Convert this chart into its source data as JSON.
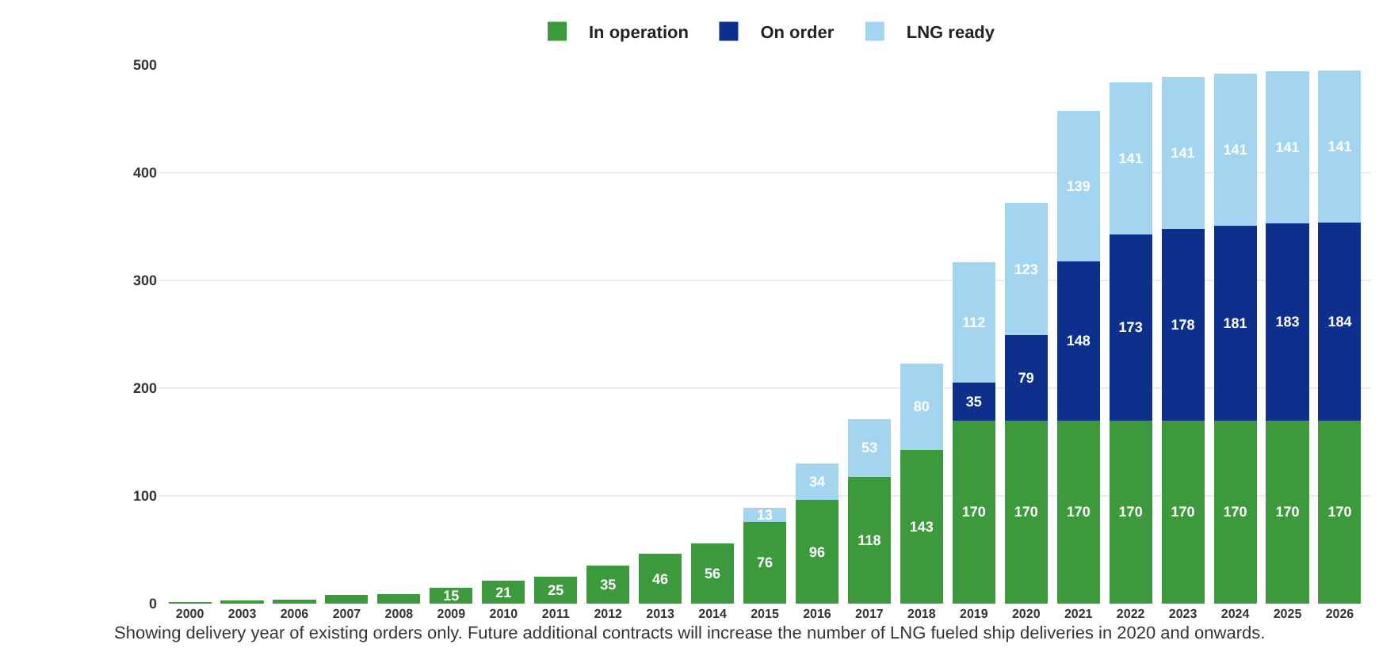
{
  "chart_data": {
    "type": "bar",
    "stacked": true,
    "categories": [
      "2000",
      "2003",
      "2006",
      "2007",
      "2008",
      "2009",
      "2010",
      "2011",
      "2012",
      "2013",
      "2014",
      "2015",
      "2016",
      "2017",
      "2018",
      "2019",
      "2020",
      "2021",
      "2022",
      "2023",
      "2024",
      "2025",
      "2026"
    ],
    "series": [
      {
        "name": "In operation",
        "color": "#3c9a3c",
        "values": [
          1,
          3,
          4,
          8,
          9,
          15,
          21,
          25,
          35,
          46,
          56,
          76,
          96,
          118,
          143,
          170,
          170,
          170,
          170,
          170,
          170,
          170,
          170
        ],
        "value_labels": [
          null,
          null,
          null,
          null,
          null,
          "15",
          "21",
          "25",
          "35",
          "46",
          "56",
          "76",
          "96",
          "118",
          "143",
          "170",
          "170",
          "170",
          "170",
          "170",
          "170",
          "170",
          "170"
        ]
      },
      {
        "name": "On order",
        "color": "#0e2f8c",
        "values": [
          null,
          null,
          null,
          null,
          null,
          null,
          null,
          null,
          null,
          null,
          null,
          null,
          null,
          null,
          null,
          35,
          79,
          148,
          173,
          178,
          181,
          183,
          184
        ],
        "value_labels": [
          null,
          null,
          null,
          null,
          null,
          null,
          null,
          null,
          null,
          null,
          null,
          null,
          null,
          null,
          null,
          "35",
          "79",
          "148",
          "173",
          "178",
          "181",
          "183",
          "184"
        ]
      },
      {
        "name": "LNG ready",
        "color": "#a3d5f0",
        "values": [
          null,
          null,
          null,
          null,
          null,
          null,
          null,
          null,
          null,
          null,
          null,
          13,
          34,
          53,
          80,
          112,
          123,
          139,
          141,
          141,
          141,
          141,
          141
        ],
        "value_labels": [
          null,
          null,
          null,
          null,
          null,
          null,
          null,
          null,
          null,
          null,
          null,
          "13",
          "34",
          "53",
          "80",
          "112",
          "123",
          "139",
          "141",
          "141",
          "141",
          "141",
          "141"
        ]
      }
    ],
    "ylim": [
      0,
      500
    ],
    "yticks": [
      0,
      100,
      200,
      300,
      400,
      500
    ],
    "grid": "y",
    "legend": "top",
    "annotations": [
      "Showing delivery year of existing orders only. Future additional contracts will increase the number of LNG fueled ship deliveries in 2020 and onwards."
    ]
  }
}
